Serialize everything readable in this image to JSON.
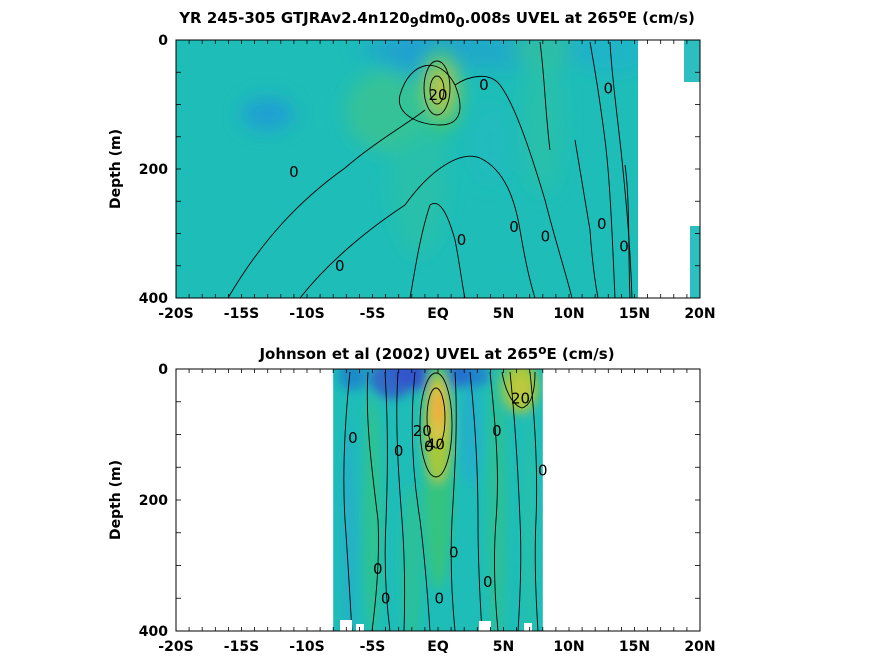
{
  "chart_data": [
    {
      "type": "heatmap",
      "title": "YR 245-305 GTJRAv2.4n120",
      "title_parts": [
        {
          "text": "YR 245-305 GTJRAv2.4n120",
          "style": "normal"
        },
        {
          "text": "9",
          "style": "sub"
        },
        {
          "text": "dm0",
          "style": "normal"
        },
        {
          "text": "0",
          "style": "sub"
        },
        {
          "text": ".008s UVEL at 265",
          "style": "normal"
        },
        {
          "text": "o",
          "style": "sup"
        },
        {
          "text": "E (cm/s)",
          "style": "normal"
        }
      ],
      "xlabel": "",
      "ylabel": "Depth (m)",
      "xlim": [
        -20,
        20
      ],
      "ylim": [
        400,
        0
      ],
      "xticks": [
        -20,
        -15,
        -10,
        -5,
        0,
        5,
        10,
        15,
        20
      ],
      "xtick_labels": [
        "-20S",
        "-15S",
        "-10S",
        "-5S",
        "EQ",
        "5N",
        "10N",
        "15N",
        "20N"
      ],
      "yticks": [
        0,
        200,
        400
      ],
      "ytick_labels": [
        "0",
        "200",
        "400"
      ],
      "data_extent_x": [
        -20,
        15.5
      ],
      "masked_regions": [
        {
          "x": [
            15.5,
            20
          ],
          "y": [
            0,
            400
          ]
        }
      ],
      "colormap": [
        "#3355cc",
        "#1f9bd6",
        "#1ec0c0",
        "#36c47a",
        "#a6c83a",
        "#f4a73a"
      ],
      "background_value_color": "#1ebdb8",
      "features": [
        {
          "kind": "jet_core",
          "x": 0.2,
          "y": 75,
          "value": 20
        },
        {
          "kind": "weak_westward",
          "x": -13,
          "y": 120
        },
        {
          "kind": "surface_westward",
          "x": 5,
          "y": 15
        }
      ],
      "contour_labels": [
        {
          "x": 0.0,
          "y": 85,
          "text": "20"
        },
        {
          "x": 3.5,
          "y": 70,
          "text": "0"
        },
        {
          "x": 13.0,
          "y": 75,
          "text": "0"
        },
        {
          "x": -11.0,
          "y": 205,
          "text": "0"
        },
        {
          "x": 1.8,
          "y": 310,
          "text": "0"
        },
        {
          "x": 5.8,
          "y": 290,
          "text": "0"
        },
        {
          "x": 8.2,
          "y": 305,
          "text": "0"
        },
        {
          "x": 12.5,
          "y": 285,
          "text": "0"
        },
        {
          "x": 14.2,
          "y": 320,
          "text": "0"
        },
        {
          "x": -7.5,
          "y": 350,
          "text": "0"
        }
      ]
    },
    {
      "type": "heatmap",
      "title": "Johnson et al (2002) UVEL at 265",
      "title_parts": [
        {
          "text": "Johnson et al (2002) UVEL at 265",
          "style": "normal"
        },
        {
          "text": "o",
          "style": "sup"
        },
        {
          "text": "E (cm/s)",
          "style": "normal"
        }
      ],
      "xlabel": "",
      "ylabel": "Depth (m)",
      "xlim": [
        -20,
        20
      ],
      "ylim": [
        400,
        0
      ],
      "xticks": [
        -20,
        -15,
        -10,
        -5,
        0,
        5,
        10,
        15,
        20
      ],
      "xtick_labels": [
        "-20S",
        "-15S",
        "-10S",
        "-5S",
        "EQ",
        "5N",
        "10N",
        "15N",
        "20N"
      ],
      "yticks": [
        0,
        200,
        400
      ],
      "ytick_labels": [
        "0",
        "200",
        "400"
      ],
      "data_extent_x": [
        -8,
        8
      ],
      "masked_regions": [
        {
          "x": [
            -20,
            -8
          ],
          "y": [
            0,
            400
          ]
        },
        {
          "x": [
            8,
            20
          ],
          "y": [
            0,
            400
          ]
        }
      ],
      "colormap": [
        "#3355cc",
        "#1f9bd6",
        "#1ec0c0",
        "#36c47a",
        "#a6c83a",
        "#f4a73a"
      ],
      "background_value_color": "#1ebdb8",
      "features": [
        {
          "kind": "jet_core",
          "x": 0.0,
          "y": 65,
          "value": 40
        },
        {
          "kind": "surface_eastward",
          "x": 6.3,
          "y": 25,
          "value": 20
        },
        {
          "kind": "surface_westward",
          "x": 0.5,
          "y": 8
        }
      ],
      "contour_labels": [
        {
          "x": -0.2,
          "y": 115,
          "text": "40"
        },
        {
          "x": -1.2,
          "y": 95,
          "text": "20"
        },
        {
          "x": 6.3,
          "y": 45,
          "text": "20"
        },
        {
          "x": -6.5,
          "y": 105,
          "text": "0"
        },
        {
          "x": -3.0,
          "y": 125,
          "text": "0"
        },
        {
          "x": -0.7,
          "y": 118,
          "text": "0"
        },
        {
          "x": 4.5,
          "y": 95,
          "text": "0"
        },
        {
          "x": 8.0,
          "y": 155,
          "text": "0"
        },
        {
          "x": 1.2,
          "y": 280,
          "text": "0"
        },
        {
          "x": 3.8,
          "y": 325,
          "text": "0"
        },
        {
          "x": -4.6,
          "y": 305,
          "text": "0"
        },
        {
          "x": -4.0,
          "y": 350,
          "text": "0"
        },
        {
          "x": 0.1,
          "y": 350,
          "text": "0"
        }
      ]
    }
  ]
}
